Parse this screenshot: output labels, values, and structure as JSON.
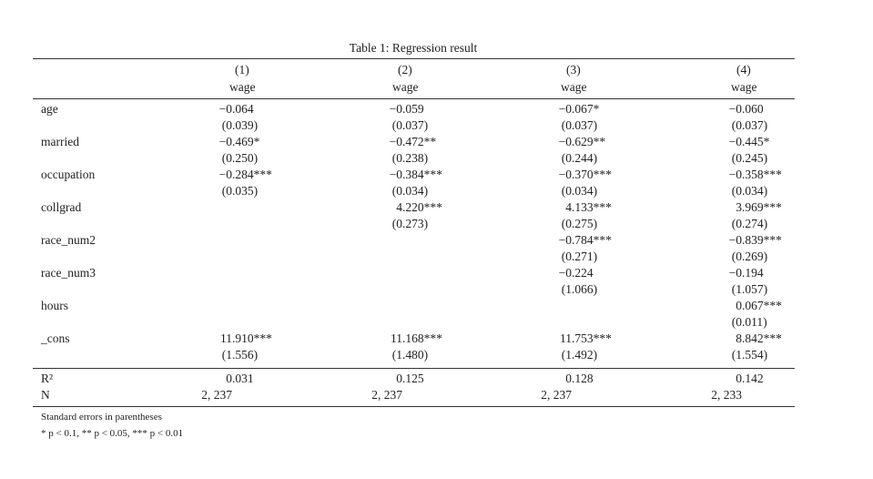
{
  "title": "Table 1: Regression result",
  "header": {
    "numbers": [
      "(1)",
      "(2)",
      "(3)",
      "(4)"
    ],
    "depvars": [
      "wage",
      "wage",
      "wage",
      "wage"
    ]
  },
  "rows": [
    {
      "label": "age",
      "coef": [
        "−0.064",
        "−0.059",
        "−0.067*",
        "−0.060"
      ],
      "se": [
        "(0.039)",
        "(0.037)",
        "(0.037)",
        "(0.037)"
      ]
    },
    {
      "label": "married",
      "coef": [
        "−0.469*",
        "−0.472**",
        "−0.629**",
        "−0.445*"
      ],
      "se": [
        "(0.250)",
        "(0.238)",
        "(0.244)",
        "(0.245)"
      ]
    },
    {
      "label": "occupation",
      "coef": [
        "−0.284***",
        "−0.384***",
        "−0.370***",
        "−0.358***"
      ],
      "se": [
        "(0.035)",
        "(0.034)",
        "(0.034)",
        "(0.034)"
      ]
    },
    {
      "label": "collgrad",
      "coef": [
        null,
        "4.220***",
        "4.133***",
        "3.969***"
      ],
      "se": [
        null,
        "(0.273)",
        "(0.275)",
        "(0.274)"
      ]
    },
    {
      "label": "race_num2",
      "coef": [
        null,
        null,
        "−0.784***",
        "−0.839***"
      ],
      "se": [
        null,
        null,
        "(0.271)",
        "(0.269)"
      ]
    },
    {
      "label": "race_num3",
      "coef": [
        null,
        null,
        "−0.224",
        "−0.194"
      ],
      "se": [
        null,
        null,
        "(1.066)",
        "(1.057)"
      ]
    },
    {
      "label": "hours",
      "coef": [
        null,
        null,
        null,
        "0.067***"
      ],
      "se": [
        null,
        null,
        null,
        "(0.011)"
      ]
    },
    {
      "label": "_cons",
      "coef": [
        "11.910***",
        "11.168***",
        "11.753***",
        "8.842***"
      ],
      "se": [
        "(1.556)",
        "(1.480)",
        "(1.492)",
        "(1.554)"
      ]
    }
  ],
  "stats": [
    {
      "label": "R²",
      "values": [
        "0.031",
        "0.125",
        "0.128",
        "0.142"
      ]
    },
    {
      "label": "N",
      "values": [
        "2, 237",
        "2, 237",
        "2, 237",
        "2, 233"
      ]
    }
  ],
  "notes": [
    "Standard errors in parentheses",
    "* p < 0.1, ** p < 0.05, *** p < 0.01"
  ]
}
